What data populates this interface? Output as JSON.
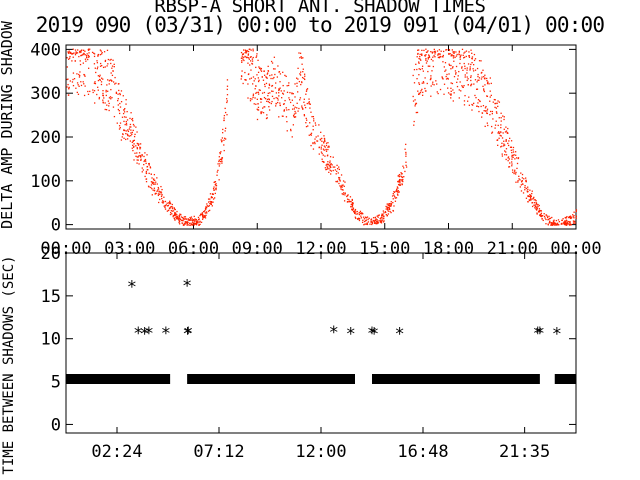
{
  "header": {
    "title": "RBSP-A SHORT ANT. SHADOW TIMES",
    "subtitle": "2019 090 (03/31) 00:00 to 2019 091 (04/01) 00:00"
  },
  "colors": {
    "points": "#ff2200",
    "stars": "#000000",
    "axes": "#000000"
  },
  "chart_data": [
    {
      "type": "scatter",
      "title": "RBSP-A SHORT ANT. SHADOW TIMES",
      "ylabel": "DELTA AMP DURING SHADOW",
      "xlim": [
        0,
        24
      ],
      "ylim": [
        -10,
        410
      ],
      "xticks": [
        0,
        3,
        6,
        9,
        12,
        15,
        18,
        21,
        24
      ],
      "xtick_labels": [
        "00:00",
        "03:00",
        "06:00",
        "09:00",
        "12:00",
        "15:00",
        "18:00",
        "21:00",
        "00:00"
      ],
      "yticks": [
        0,
        100,
        200,
        300,
        400
      ],
      "ytick_labels": [
        "0",
        "100",
        "200",
        "300",
        "400"
      ],
      "marker_color": "#ff2200",
      "lobes": [
        {
          "x": [
            0.0,
            0.3,
            0.7,
            1.2,
            1.7,
            2.2,
            2.7,
            3.2,
            3.7,
            4.2,
            4.7,
            5.2,
            5.7,
            6.2,
            6.5,
            6.9,
            7.2,
            7.4,
            7.6
          ],
          "y": [
            395,
            400,
            400,
            390,
            360,
            320,
            260,
            200,
            140,
            90,
            50,
            20,
            5,
            10,
            30,
            70,
            150,
            220,
            300
          ]
        },
        {
          "x": [
            8.2,
            8.6,
            9.0,
            9.4,
            9.8,
            10.2,
            10.6,
            11.0,
            11.4,
            11.8,
            12.2,
            12.6,
            13.0,
            13.4,
            13.8,
            14.2,
            14.6,
            15.0,
            15.4,
            15.8,
            16.0
          ],
          "y": [
            400,
            380,
            330,
            300,
            340,
            320,
            260,
            360,
            260,
            200,
            170,
            130,
            90,
            50,
            20,
            5,
            8,
            25,
            60,
            120,
            180
          ]
        },
        {
          "x": [
            16.3,
            16.6,
            17.0,
            17.6,
            18.2,
            18.8,
            19.4,
            20.0,
            20.5,
            21.0,
            21.5,
            22.0,
            22.5,
            23.0,
            23.4,
            23.8,
            24.0
          ],
          "y": [
            300,
            360,
            400,
            400,
            390,
            370,
            330,
            280,
            220,
            160,
            100,
            50,
            15,
            3,
            5,
            12,
            25
          ]
        }
      ]
    },
    {
      "type": "scatter",
      "ylabel": "TIME BETWEEN SHADOWS (SEC)",
      "xlim": [
        0,
        24
      ],
      "ylim": [
        -1,
        20
      ],
      "xticks": [
        2.4,
        7.2,
        12.0,
        16.8,
        21.583
      ],
      "xtick_labels": [
        "02:24",
        "07:12",
        "12:00",
        "16:48",
        "21:35"
      ],
      "yticks": [
        0,
        5,
        10,
        15,
        20
      ],
      "ytick_labels": [
        "0",
        "5",
        "10",
        "15",
        "20"
      ],
      "marker": "*",
      "marker_color": "#000000",
      "baseline": {
        "y": 5.3,
        "ranges": [
          [
            0,
            4.9
          ],
          [
            5.7,
            13.6
          ],
          [
            14.4,
            22.3
          ],
          [
            23.0,
            24.0
          ]
        ]
      },
      "points": {
        "x": [
          3.1,
          3.4,
          3.7,
          3.9,
          4.7,
          5.7,
          5.75,
          5.72,
          12.6,
          13.4,
          14.4,
          14.5,
          15.7,
          22.2,
          22.3,
          23.1
        ],
        "y": [
          16.2,
          10.8,
          10.7,
          10.8,
          10.8,
          16.3,
          10.8,
          10.7,
          10.9,
          10.7,
          10.8,
          10.7,
          10.7,
          10.8,
          10.8,
          10.7
        ]
      }
    }
  ]
}
